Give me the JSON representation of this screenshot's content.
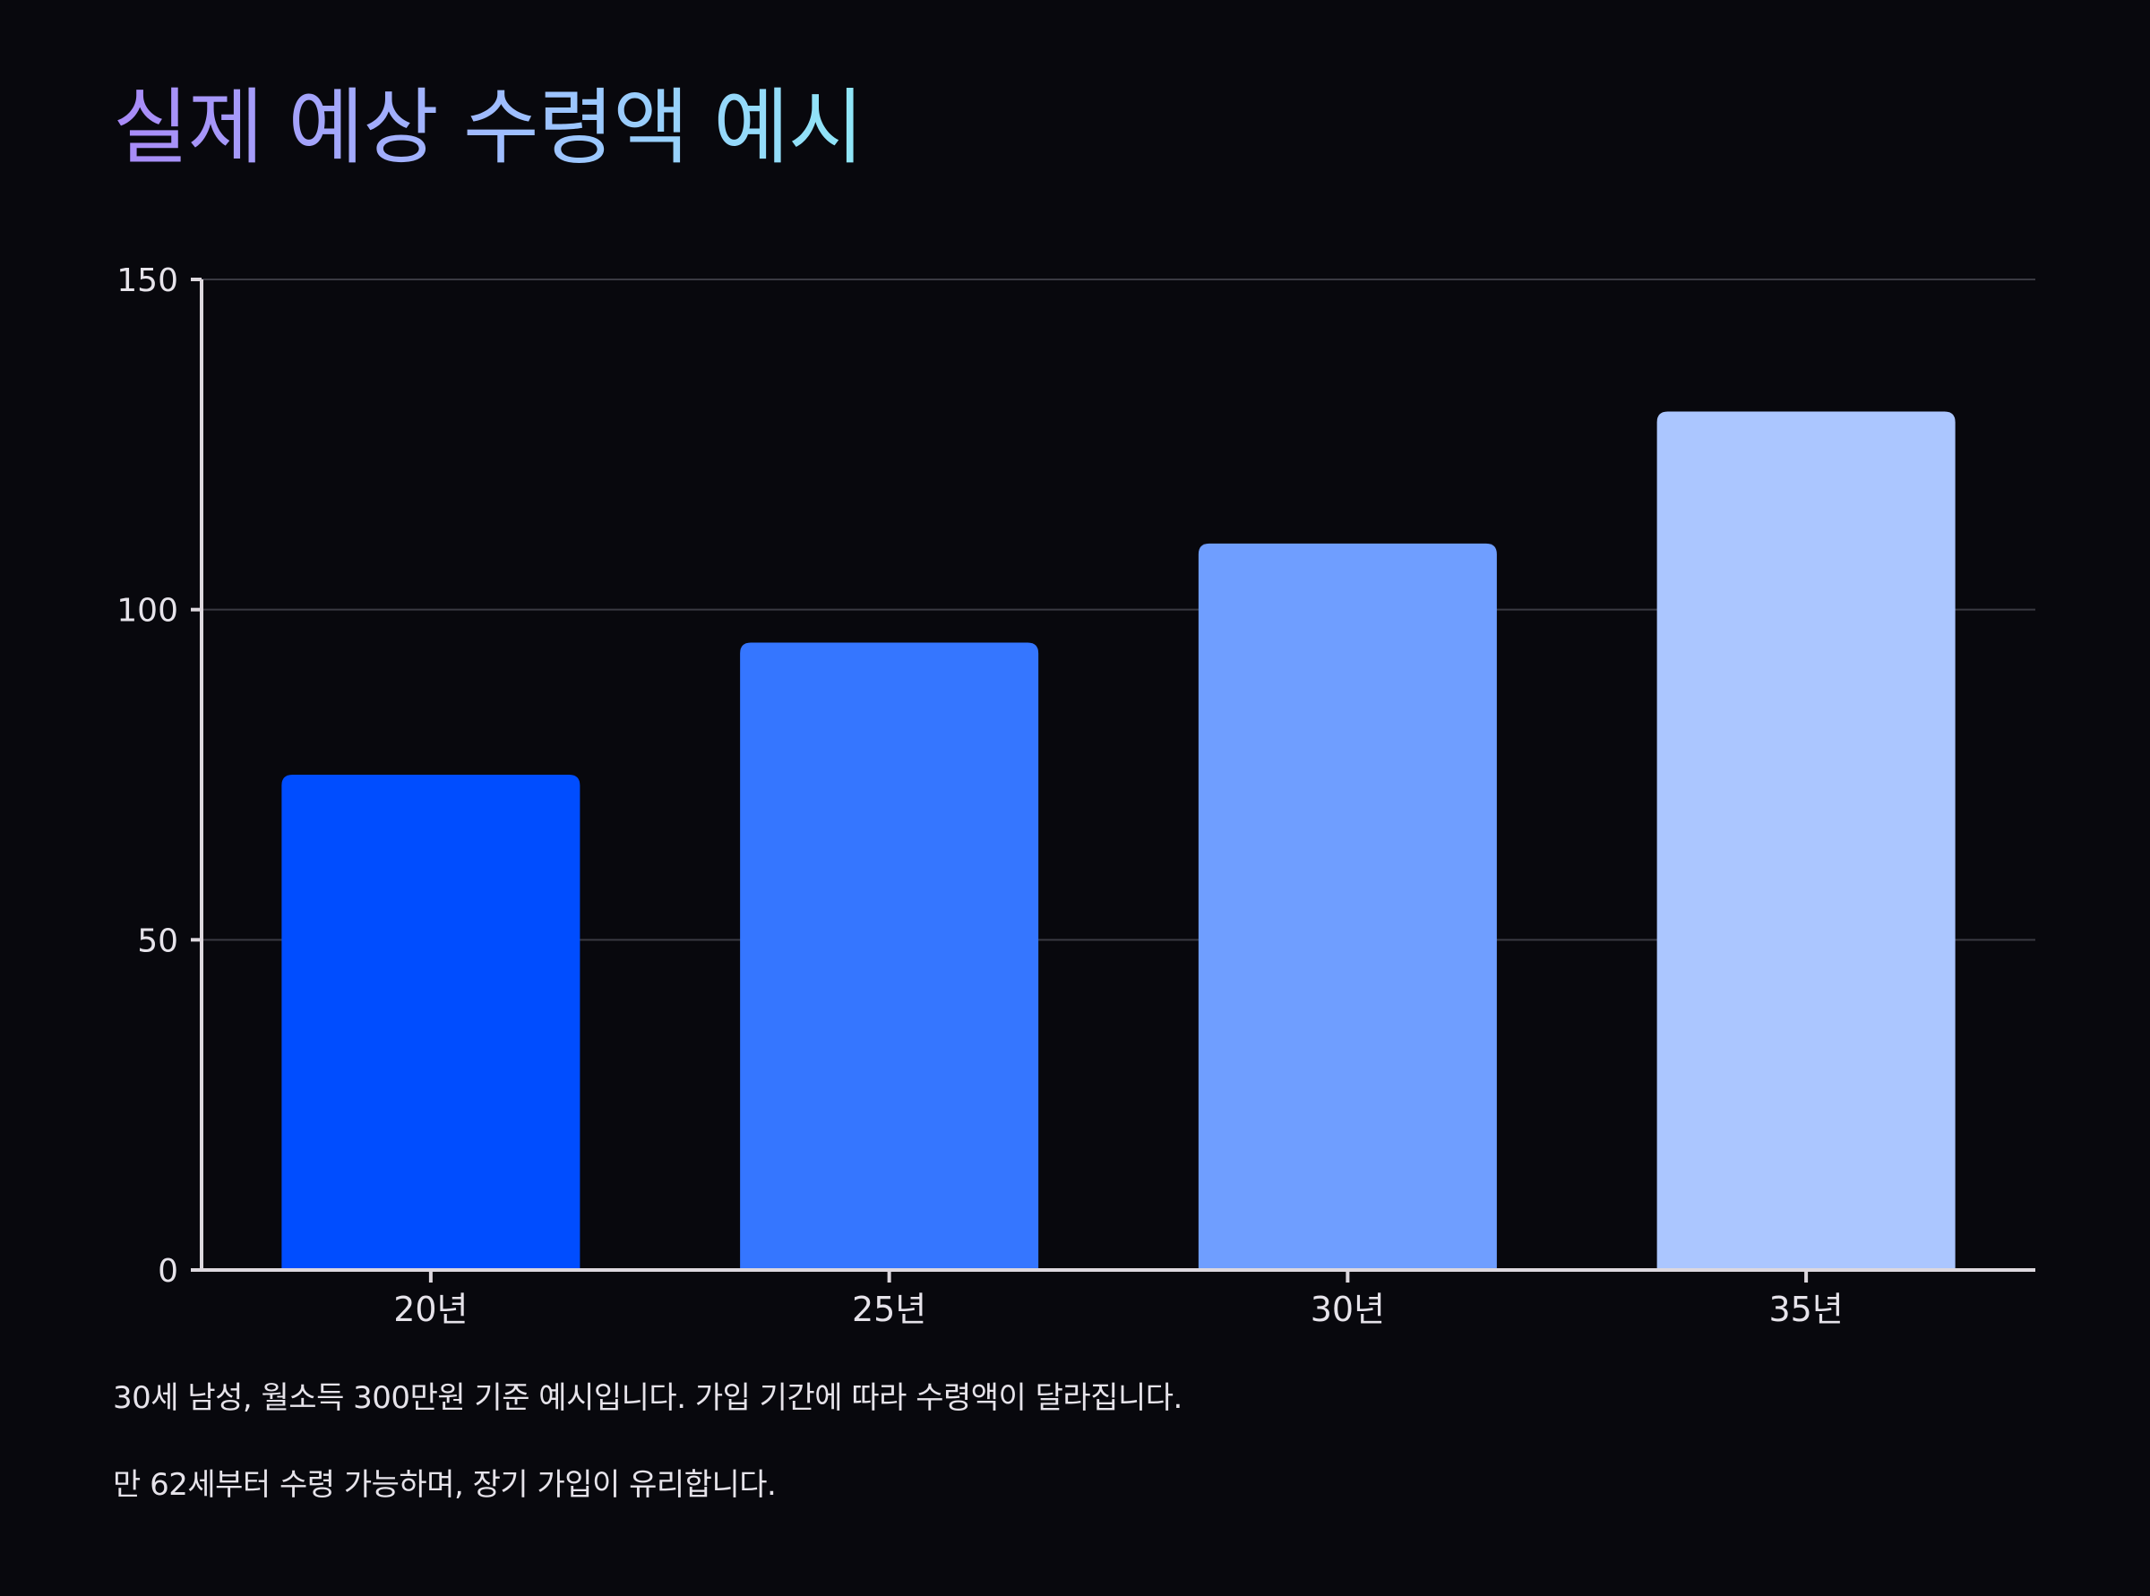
{
  "page": {
    "title": "실제 예상 수령액 예시",
    "notes": [
      "30세 남성, 월소득 300만원 기준 예시입니다. 가입 기간에 따라 수령액이 달라집니다.",
      "만 62세부터 수령 가능하며, 장기 가입이 유리합니다."
    ]
  },
  "colors": {
    "background": "#08080d",
    "axis": "#ddd8de",
    "grid": "#3a3a42",
    "text": "#e6e3ea",
    "bars": [
      "#004dff",
      "#3576ff",
      "#6f9eff",
      "#abc6ff"
    ]
  },
  "chart_data": {
    "type": "bar",
    "title": "실제 예상 수령액 예시",
    "categories": [
      "20년",
      "25년",
      "30년",
      "35년"
    ],
    "values": [
      75,
      95,
      110,
      130
    ],
    "xlabel": "",
    "ylabel": "",
    "ylim": [
      0,
      150
    ],
    "yticks": [
      0,
      50,
      100,
      150
    ],
    "ytick_labels": [
      "0",
      "50",
      "100",
      "150"
    ],
    "grid": true,
    "legend": "none"
  }
}
